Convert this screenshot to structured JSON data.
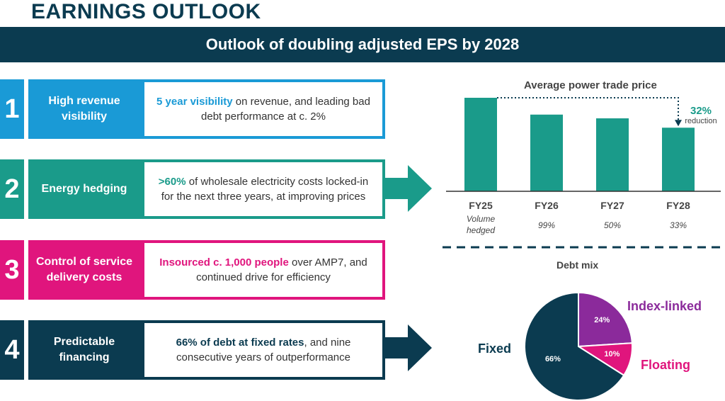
{
  "title": "EARNINGS OUTLOOK",
  "banner": "Outlook of doubling adjusted EPS by 2028",
  "rows": [
    {
      "num": "1",
      "heading": "High revenue visibility",
      "highlight": "5 year visibility",
      "rest": " on revenue, and leading bad debt performance at c. 2%",
      "color": "#1a9ad6"
    },
    {
      "num": "2",
      "heading": "Energy hedging",
      "highlight": ">60%",
      "rest": " of wholesale electricity costs locked-in for the next three years, at improving prices",
      "color": "#1a9b8a"
    },
    {
      "num": "3",
      "heading": "Control of service delivery costs",
      "highlight": "Insourced c. 1,000 people",
      "rest": " over AMP7, and continued drive for efficiency",
      "color": "#e0157d"
    },
    {
      "num": "4",
      "heading": "Predictable financing",
      "highlight": "66% of debt at fixed rates",
      "rest": ", and nine consecutive years of outperformance",
      "color": "#0b3b50"
    }
  ],
  "chart_data": [
    {
      "type": "bar",
      "title": "Average power trade price",
      "categories": [
        "FY25",
        "FY26",
        "FY27",
        "FY28"
      ],
      "values": [
        100,
        82,
        78,
        68
      ],
      "annotation": {
        "value": "32%",
        "label": "reduction"
      },
      "volume_hedged_label": "Volume hedged",
      "volume_hedged": [
        "",
        "99%",
        "50%",
        "33%"
      ],
      "color": "#1a9b8a"
    },
    {
      "type": "pie",
      "title": "Debt mix",
      "slices": [
        {
          "name": "Fixed",
          "value": 66,
          "label": "66%",
          "color": "#0b3b50"
        },
        {
          "name": "Index-linked",
          "value": 24,
          "label": "24%",
          "color": "#8b2a9b"
        },
        {
          "name": "Floating",
          "value": 10,
          "label": "10%",
          "color": "#e0157d"
        }
      ]
    }
  ]
}
